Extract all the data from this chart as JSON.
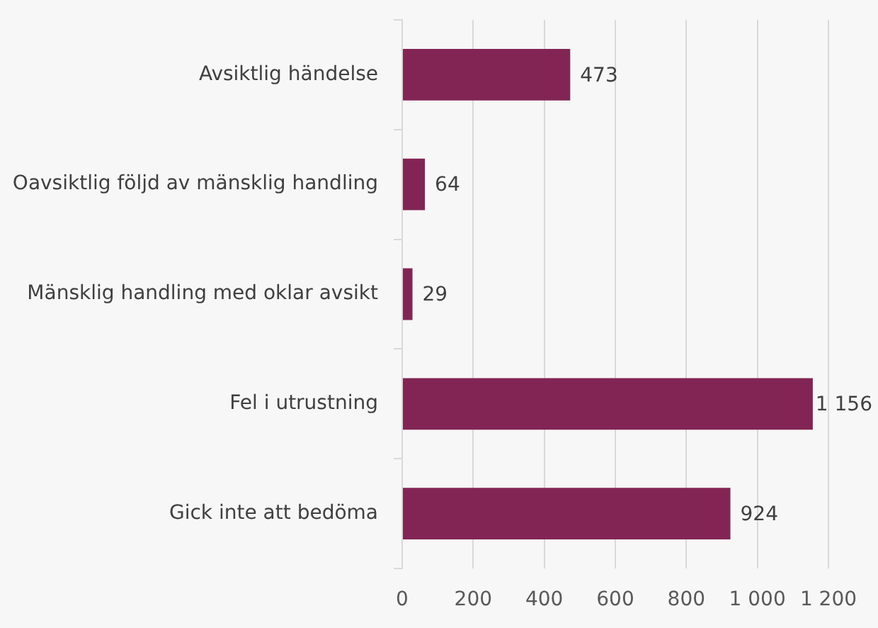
{
  "chart_data": {
    "type": "bar",
    "orientation": "horizontal",
    "categories": [
      "Avsiktlig händelse",
      "Oavsiktlig följd av mänsklig handling",
      "Mänsklig handling med oklar avsikt",
      "Fel i utrustning",
      "Gick inte att bedöma"
    ],
    "values": [
      473,
      64,
      29,
      1156,
      924
    ],
    "color": "#822555",
    "value_labels": [
      "473",
      "64",
      "29",
      "1 156",
      "924"
    ],
    "xlim": [
      0,
      1200
    ],
    "xticks": [
      0,
      200,
      400,
      600,
      800,
      {
        "value": 1000,
        "label": "1 000"
      },
      {
        "value": 1200,
        "label": "1 200"
      }
    ],
    "grid": "x"
  }
}
